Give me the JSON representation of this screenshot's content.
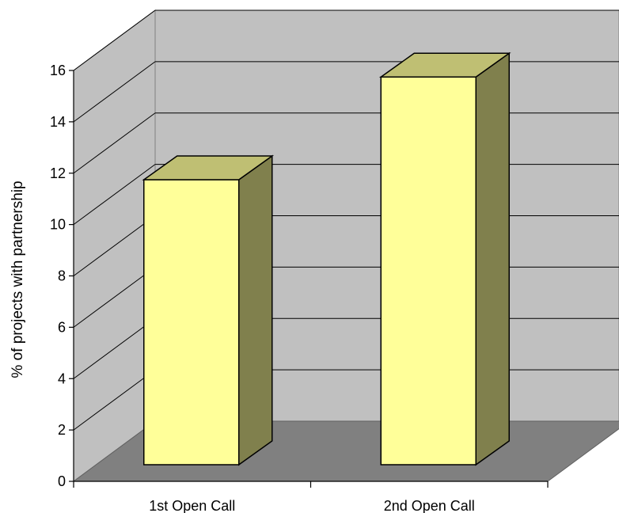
{
  "chart_data": {
    "type": "bar",
    "style": "3d-column",
    "categories": [
      "1st Open Call",
      "2nd Open Call"
    ],
    "values": [
      11.5,
      15.5
    ],
    "title": "",
    "xlabel": "",
    "ylabel": "% of projects with partnership",
    "ylim": [
      0,
      16
    ],
    "yticks": [
      "0",
      "2",
      "4",
      "6",
      "8",
      "10",
      "12",
      "14",
      "16"
    ],
    "grid": true,
    "legend": "none"
  },
  "colors": {
    "wall": "#c0c0c0",
    "floor": "#808080",
    "bar_front": "#ffff99",
    "bar_top": "#bfbf73",
    "bar_side": "#80804d",
    "gridline": "#000000"
  }
}
